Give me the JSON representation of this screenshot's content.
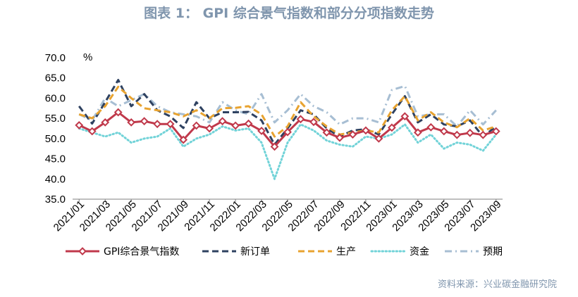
{
  "title": "图表 1： GPI 综合景气指数和部分分项指数走势",
  "source": "资料来源：兴业碳金融研究院",
  "chart_data": {
    "type": "line",
    "title": "图表 1： GPI 综合景气指数和部分分项指数走势",
    "ylabel": "%",
    "ylim": [
      35,
      70
    ],
    "yticks": [
      "35.0",
      "40.0",
      "45.0",
      "50.0",
      "55.0",
      "60.0",
      "65.0",
      "70.0"
    ],
    "x": [
      "2021/01",
      "2021/02",
      "2021/03",
      "2021/04",
      "2021/05",
      "2021/06",
      "2021/07",
      "2021/08",
      "2021/09",
      "2021/10",
      "2021/11",
      "2021/12",
      "2022/01",
      "2022/02",
      "2022/03",
      "2022/04",
      "2022/05",
      "2022/06",
      "2022/07",
      "2022/08",
      "2022/09",
      "2022/10",
      "2022/11",
      "2022/12",
      "2023/01",
      "2023/02",
      "2023/03",
      "2023/04",
      "2023/05",
      "2023/06",
      "2023/07",
      "2023/08",
      "2023/09"
    ],
    "xtick_labels": [
      "2021/01",
      "2021/03",
      "2021/05",
      "2021/07",
      "2021/09",
      "2021/11",
      "2022/01",
      "2022/03",
      "2022/05",
      "2022/07",
      "2022/09",
      "2022/11",
      "2023/01",
      "2023/03",
      "2023/05",
      "2023/07",
      "2023/09"
    ],
    "series": [
      {
        "name": "GPI综合景气指数",
        "color": "#c0394b",
        "style": "solid-marker",
        "values": [
          53.3,
          51.8,
          54.0,
          56.5,
          54.0,
          54.3,
          53.6,
          53.6,
          49.7,
          53.2,
          52.5,
          54.3,
          53.2,
          53.7,
          51.9,
          48.0,
          51.6,
          54.8,
          54.1,
          51.5,
          50.2,
          51.0,
          52.0,
          50.0,
          52.7,
          55.5,
          51.5,
          52.8,
          51.8,
          50.9,
          51.4,
          50.9,
          51.8
        ]
      },
      {
        "name": "新订单",
        "color": "#2e4160",
        "style": "dash",
        "values": [
          58.0,
          53.7,
          59.0,
          64.5,
          58.0,
          61.0,
          57.0,
          55.5,
          52.6,
          59.0,
          55.0,
          56.5,
          56.5,
          56.6,
          54.5,
          48.5,
          52.5,
          57.0,
          56.0,
          52.5,
          50.5,
          52.0,
          52.3,
          51.0,
          56.0,
          60.5,
          54.0,
          56.0,
          53.5,
          53.0,
          54.5,
          50.5,
          53.0
        ]
      },
      {
        "name": "生产",
        "color": "#e8a330",
        "style": "dash",
        "values": [
          56.0,
          55.0,
          58.0,
          62.8,
          60.0,
          57.5,
          57.0,
          56.5,
          55.5,
          57.0,
          55.0,
          57.5,
          57.6,
          58.0,
          56.0,
          50.5,
          53.0,
          59.0,
          55.5,
          53.0,
          51.0,
          51.5,
          52.0,
          51.5,
          57.0,
          60.5,
          54.5,
          56.5,
          54.0,
          52.8,
          55.0,
          52.0,
          53.0
        ]
      },
      {
        "name": "资金",
        "color": "#72d3d8",
        "style": "dot",
        "values": [
          52.5,
          51.5,
          50.5,
          51.5,
          49.0,
          50.0,
          50.5,
          52.5,
          48.0,
          50.0,
          51.0,
          53.0,
          52.0,
          52.5,
          49.0,
          40.0,
          49.0,
          53.5,
          52.0,
          49.5,
          48.5,
          48.0,
          50.5,
          50.0,
          51.0,
          53.5,
          49.0,
          51.0,
          47.5,
          49.0,
          48.5,
          47.0,
          51.0
        ]
      },
      {
        "name": "预期",
        "color": "#a7bed3",
        "style": "dashdot",
        "values": [
          56.0,
          54.5,
          60.0,
          58.0,
          59.5,
          61.0,
          58.0,
          56.5,
          56.0,
          55.5,
          54.0,
          59.0,
          57.0,
          56.0,
          61.0,
          54.0,
          57.0,
          61.0,
          58.0,
          56.5,
          53.5,
          55.0,
          55.0,
          54.0,
          62.0,
          63.0,
          55.5,
          56.0,
          56.0,
          53.0,
          57.0,
          53.5,
          57.0
        ]
      }
    ]
  }
}
